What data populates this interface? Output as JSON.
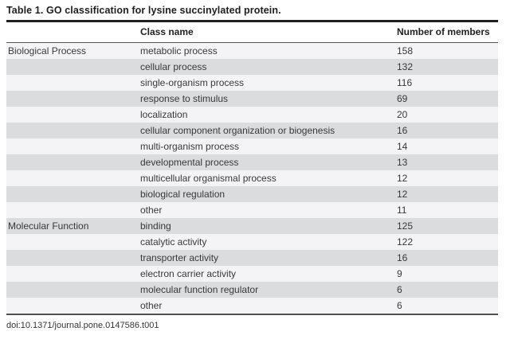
{
  "title": "Table 1. GO classification for lysine succinylated protein.",
  "table": {
    "header": {
      "category_label": "",
      "class_name_label": "Class name",
      "members_label": "Number of members"
    },
    "rows": [
      {
        "category": "Biological Process",
        "class_name": "metabolic process",
        "members": "158"
      },
      {
        "category": "",
        "class_name": "cellular process",
        "members": "132"
      },
      {
        "category": "",
        "class_name": "single-organism process",
        "members": "116"
      },
      {
        "category": "",
        "class_name": "response to stimulus",
        "members": "69"
      },
      {
        "category": "",
        "class_name": "localization",
        "members": "20"
      },
      {
        "category": "",
        "class_name": "cellular component organization or biogenesis",
        "members": "16"
      },
      {
        "category": "",
        "class_name": "multi-organism process",
        "members": "14"
      },
      {
        "category": "",
        "class_name": "developmental process",
        "members": "13"
      },
      {
        "category": "",
        "class_name": "multicellular organismal process",
        "members": "12"
      },
      {
        "category": "",
        "class_name": "biological regulation",
        "members": "12"
      },
      {
        "category": "",
        "class_name": "other",
        "members": "11"
      },
      {
        "category": "Molecular Function",
        "class_name": "binding",
        "members": "125"
      },
      {
        "category": "",
        "class_name": "catalytic activity",
        "members": "122"
      },
      {
        "category": "",
        "class_name": "transporter activity",
        "members": "16"
      },
      {
        "category": "",
        "class_name": "electron carrier activity",
        "members": "9"
      },
      {
        "category": "",
        "class_name": "molecular function regulator",
        "members": "6"
      },
      {
        "category": "",
        "class_name": "other",
        "members": "6"
      }
    ]
  },
  "footer": {
    "doi": "doi:10.1371/journal.pone.0147586.t001"
  },
  "colors": {
    "row_light": "#f4f4f6",
    "row_shaded": "#dbdcde",
    "rule_thick": "#1f1f1f",
    "rule_thin": "#515151"
  }
}
